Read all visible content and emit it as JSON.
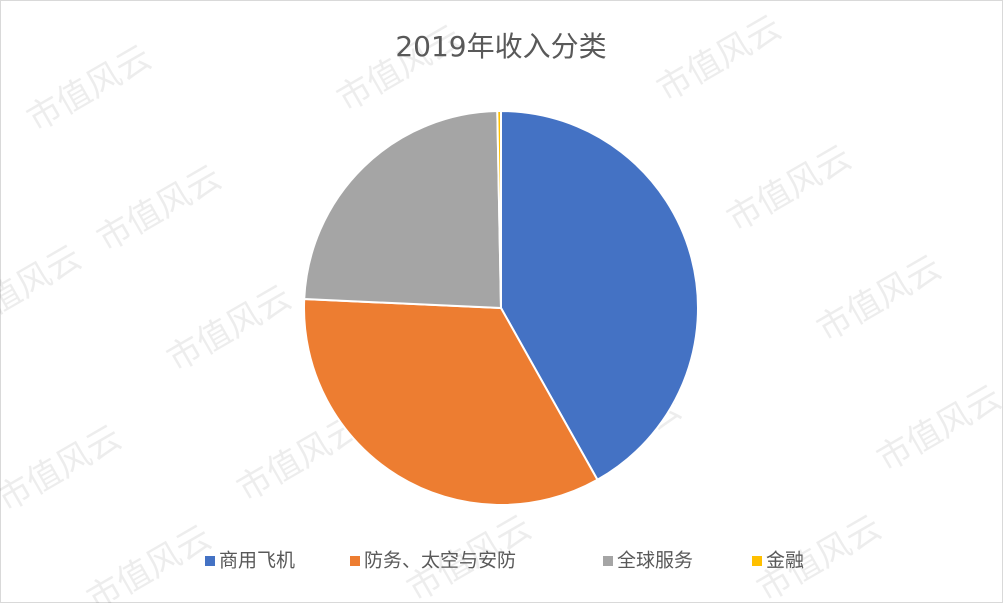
{
  "chart_data": {
    "type": "pie",
    "title": "2019年收入分类",
    "categories": [
      "商用飞机",
      "防务、太空与安防",
      "全球服务",
      "金融"
    ],
    "values": [
      41.9,
      33.9,
      24.0,
      0.3
    ],
    "colors": [
      "#4472c4",
      "#ed7d31",
      "#a5a5a5",
      "#ffc000"
    ],
    "legend": "bottom"
  },
  "watermark": "市值风云"
}
